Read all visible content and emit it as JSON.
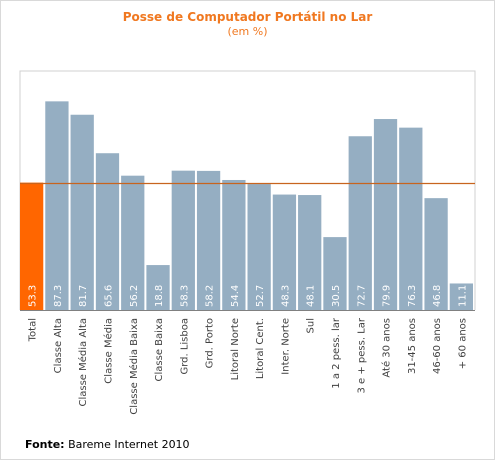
{
  "chart_data": {
    "type": "bar",
    "title": "Posse de Computador Portátil no Lar",
    "subtitle": "(em %)",
    "categories": [
      "Total",
      "Classe Alta",
      "Classe Média Alta",
      "Classe Média",
      "Classe Média Baixa",
      "Classe Baixa",
      "Grd. Lisboa",
      "Grd. Porto",
      "Litoral Norte",
      "Litoral Cent.",
      "Inter. Norte",
      "Sul",
      "1 a 2 pess. lar",
      "3 e + pess. Lar",
      "Até 30 anos",
      "31-45 anos",
      "46-60 anos",
      "+ 60 anos"
    ],
    "values": [
      53.3,
      87.3,
      81.7,
      65.6,
      56.2,
      18.8,
      58.3,
      58.2,
      54.4,
      52.7,
      48.3,
      48.1,
      30.5,
      72.7,
      79.9,
      76.3,
      46.8,
      11.1
    ],
    "value_labels": [
      "53.3",
      "87.3",
      "81.7",
      "65.6",
      "56.2",
      "18.8",
      "58.3",
      "58.2",
      "54.4",
      "52.7",
      "48.3",
      "48.1",
      "30.5",
      "72.7",
      "79.9",
      "76.3",
      "46.8",
      "11.1"
    ],
    "reference_line": 53.3,
    "highlight_index": 0,
    "ylim": [
      0,
      100
    ],
    "grid": false,
    "colors": {
      "bar": "#95aec2",
      "highlight_bar": "#ff6600",
      "reference_line": "#c8641e",
      "title": "#f07820",
      "axis": "#808080"
    }
  },
  "source": {
    "label": "Fonte:",
    "text": " Bareme Internet 2010"
  }
}
